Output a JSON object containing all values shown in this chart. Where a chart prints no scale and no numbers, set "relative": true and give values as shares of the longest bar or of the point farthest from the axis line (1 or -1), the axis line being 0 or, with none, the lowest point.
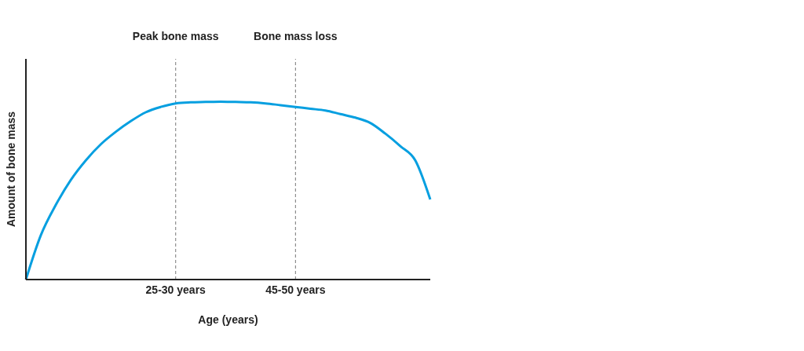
{
  "chart_data": {
    "type": "line",
    "relative": true,
    "xlabel": "Age (years)",
    "ylabel": "Amount of bone mass",
    "categories": [
      null,
      null,
      null,
      null,
      null,
      null,
      null,
      null,
      null,
      null,
      "25-30 years",
      null,
      null,
      null,
      null,
      null,
      null,
      null,
      "45-50 years",
      null,
      null,
      null,
      null,
      null,
      null,
      null,
      null,
      null
    ],
    "series": [
      {
        "color": "#069fe0",
        "values": [
          0,
          0.25,
          0.42,
          0.56,
          0.67,
          0.76,
          0.83,
          0.89,
          0.94,
          0.97,
          0.99,
          0.996,
          0.998,
          1,
          0.998,
          0.996,
          0.99,
          0.98,
          0.97,
          0.96,
          0.95,
          0.93,
          0.91,
          0.88,
          0.82,
          0.75,
          0.67,
          0.45
        ]
      }
    ],
    "ref_lines": [
      {
        "axis": "x",
        "value": "25-30 years",
        "label": "Peak bone mass",
        "color": "#777777",
        "line_style": "dashed"
      },
      {
        "axis": "x",
        "value": "45-50 years",
        "label": "Bone mass loss",
        "color": "#777777",
        "line_style": "dashed"
      }
    ],
    "grid": false,
    "legend": false
  }
}
